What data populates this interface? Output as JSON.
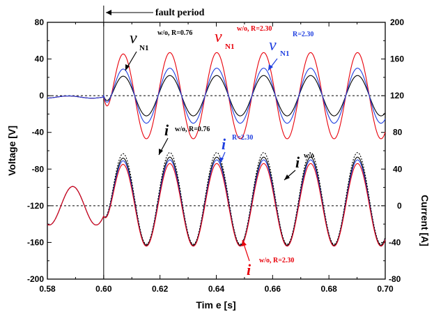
{
  "chart_data": {
    "type": "line",
    "xlabel": "Tim e [s]",
    "ylabel_left": "Voltage [V]",
    "ylabel_right": "Current [A]",
    "xlim": [
      0.58,
      0.7
    ],
    "ylim_left": [
      -200,
      80
    ],
    "ylim_right": [
      -80,
      200
    ],
    "x_ticks": [
      "0.58",
      "0.60",
      "0.62",
      "0.64",
      "0.66",
      "0.68",
      "0.70"
    ],
    "y_left_ticks": [
      "-200",
      "-160",
      "-120",
      "-80",
      "-40",
      "0",
      "40",
      "80"
    ],
    "y_right_ticks": [
      "-80",
      "-40",
      "0",
      "40",
      "80",
      "120",
      "160",
      "200"
    ],
    "fault_time": 0.6,
    "fault_label": "fault period",
    "frequency_hz": 60,
    "colors": {
      "black": "#000000",
      "red": "#e8000a",
      "blue": "#1f3fe0"
    },
    "voltage_series": [
      {
        "key": "wo_076",
        "color": "#000000",
        "amplitude": 22,
        "style": "solid"
      },
      {
        "key": "wo_230",
        "color": "#e8000a",
        "amplitude": 47,
        "style": "solid"
      },
      {
        "key": "r_230",
        "color": "#1f3fe0",
        "amplitude": 30,
        "style": "solid"
      }
    ],
    "current_series": [
      {
        "key": "wo",
        "color": "#000000",
        "amplitude": 50,
        "offset": 8,
        "style": "dashed"
      },
      {
        "key": "wo_076",
        "color": "#000000",
        "amplitude": 48,
        "offset": 5,
        "style": "solid"
      },
      {
        "key": "r_230",
        "color": "#1f3fe0",
        "amplitude": 47,
        "offset": 3,
        "style": "solid"
      },
      {
        "key": "wo_230",
        "color": "#e8000a",
        "amplitude": 45,
        "offset": 1,
        "style": "solid"
      }
    ],
    "annotations": {
      "v_black_label": "v",
      "v_black_sub": "N1",
      "v_black_cond": "w/o, R=0.76",
      "v_red_label": "v",
      "v_red_sub": "N1",
      "v_red_cond": "w/o, R=2.30",
      "v_blue_label": "v",
      "v_blue_sub": "N1",
      "v_blue_cond": "R=2.30",
      "i_black_label": "i",
      "i_black_cond": "w/o, R=0.76",
      "i_blue_label": "i",
      "i_blue_cond": "R=2.30",
      "i_wo_label": "i",
      "i_wo_cond": "w/o",
      "i_red_label": "i",
      "i_red_cond": "w/o, R=2.30"
    }
  }
}
